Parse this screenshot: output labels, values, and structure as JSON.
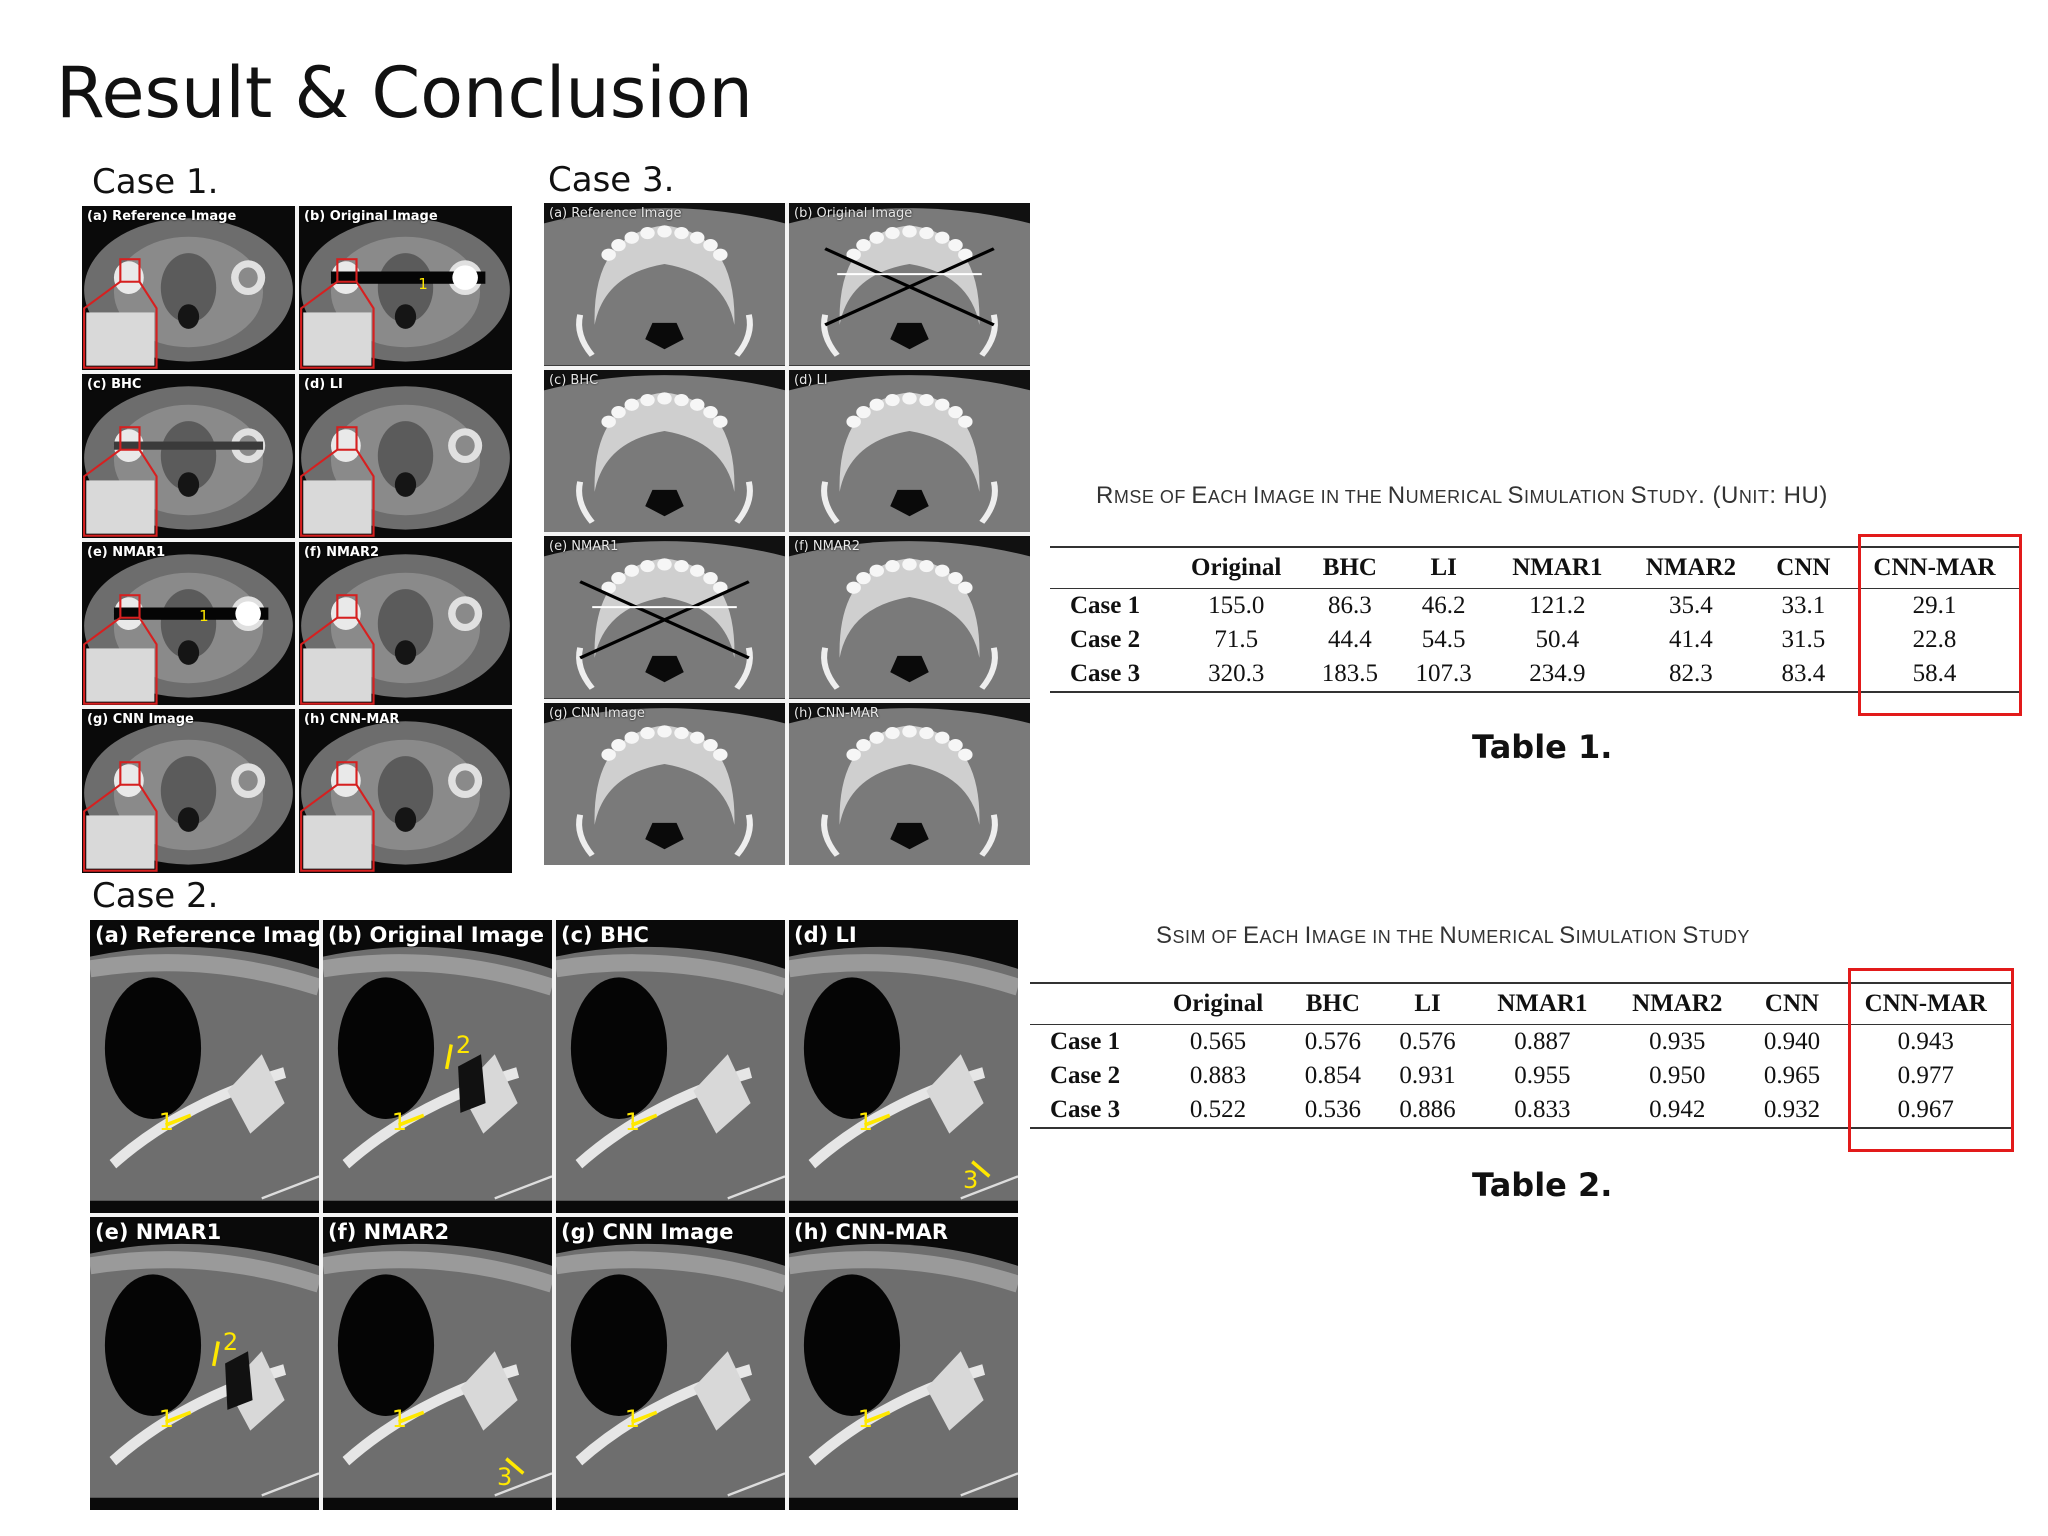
{
  "slide": {
    "title": "Result & Conclusion"
  },
  "case1": {
    "label": "Case 1.",
    "panels": [
      "(a) Reference Image",
      "(b) Original Image",
      "(c) BHC",
      "(d) LI",
      "(e) NMAR1",
      "(f) NMAR2",
      "(g) CNN Image",
      "(h) CNN-MAR"
    ],
    "markers": [
      "1",
      "1"
    ]
  },
  "case3": {
    "label": "Case 3.",
    "panels": [
      "(a) Reference Image",
      "(b) Original Image",
      "(c) BHC",
      "(d) LI",
      "(e) NMAR1",
      "(f) NMAR2",
      "(g) CNN Image",
      "(h) CNN-MAR"
    ]
  },
  "case2": {
    "label": "Case 2.",
    "panels": [
      "(a) Reference Image",
      "(b) Original Image",
      "(c) BHC",
      "(d) LI",
      "(e) NMAR1",
      "(f) NMAR2",
      "(g) CNN Image",
      "(h) CNN-MAR"
    ],
    "markers": {
      "one": "1",
      "two": "2",
      "three": "3"
    }
  },
  "table1": {
    "caption_parts": [
      "R",
      "MSE ",
      "OF ",
      "E",
      "ACH ",
      "I",
      "MAGE IN THE ",
      "N",
      "UMERICAL ",
      "S",
      "IMULATION ",
      "S",
      "TUDY",
      ". (U",
      "NIT",
      ": HU)"
    ],
    "columns": [
      "",
      "Original",
      "BHC",
      "LI",
      "NMAR1",
      "NMAR2",
      "CNN",
      "CNN-MAR"
    ],
    "rows": [
      [
        "Case 1",
        "155.0",
        "86.3",
        "46.2",
        "121.2",
        "35.4",
        "33.1",
        "29.1"
      ],
      [
        "Case 2",
        "71.5",
        "44.4",
        "54.5",
        "50.4",
        "41.4",
        "31.5",
        "22.8"
      ],
      [
        "Case 3",
        "320.3",
        "183.5",
        "107.3",
        "234.9",
        "82.3",
        "83.4",
        "58.4"
      ]
    ],
    "label": "Table 1."
  },
  "table2": {
    "caption_parts": [
      "S",
      "SIM ",
      "OF ",
      "E",
      "ACH ",
      "I",
      "MAGE IN THE ",
      "N",
      "UMERICAL ",
      "S",
      "IMULATION ",
      "S",
      "TUDY"
    ],
    "columns": [
      "",
      "Original",
      "BHC",
      "LI",
      "NMAR1",
      "NMAR2",
      "CNN",
      "CNN-MAR"
    ],
    "rows": [
      [
        "Case 1",
        "0.565",
        "0.576",
        "0.576",
        "0.887",
        "0.935",
        "0.940",
        "0.943"
      ],
      [
        "Case 2",
        "0.883",
        "0.854",
        "0.931",
        "0.955",
        "0.950",
        "0.965",
        "0.977"
      ],
      [
        "Case 3",
        "0.522",
        "0.536",
        "0.886",
        "0.833",
        "0.942",
        "0.932",
        "0.967"
      ]
    ],
    "label": "Table 2."
  },
  "colors": {
    "highlight_box": "#e21a1a",
    "arrow": "#ffe800",
    "zoom_box": "#d62020"
  }
}
